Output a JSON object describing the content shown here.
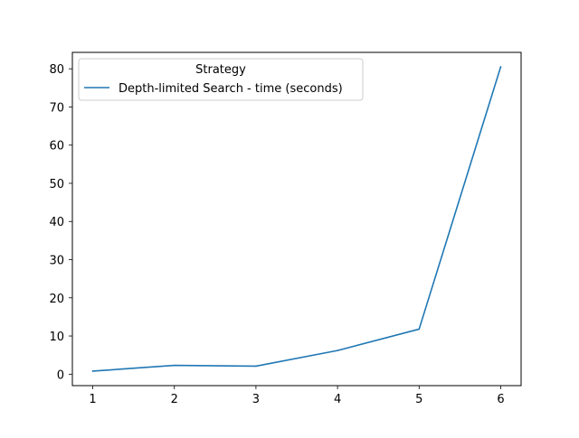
{
  "colors": {
    "series": "#1f77b4",
    "axis": "#000000",
    "legend_border": "#cccccc",
    "background": "#ffffff"
  },
  "chart_data": {
    "type": "line",
    "title": "",
    "xlabel": "",
    "ylabel": "",
    "x": [
      1,
      2,
      3,
      4,
      5,
      6
    ],
    "x_ticks": [
      "1",
      "2",
      "3",
      "4",
      "5",
      "6"
    ],
    "y_ticks": [
      "0",
      "10",
      "20",
      "30",
      "40",
      "50",
      "60",
      "70",
      "80"
    ],
    "xlim": [
      0.75,
      6.25
    ],
    "ylim": [
      -3.0,
      84.3
    ],
    "grid": false,
    "legend": {
      "title": "Strategy",
      "placement": "top-left"
    },
    "series": [
      {
        "name": "Depth-limited Search - time (seconds)",
        "values": [
          0.8,
          2.3,
          2.1,
          6.2,
          11.8,
          80.5
        ]
      }
    ]
  }
}
